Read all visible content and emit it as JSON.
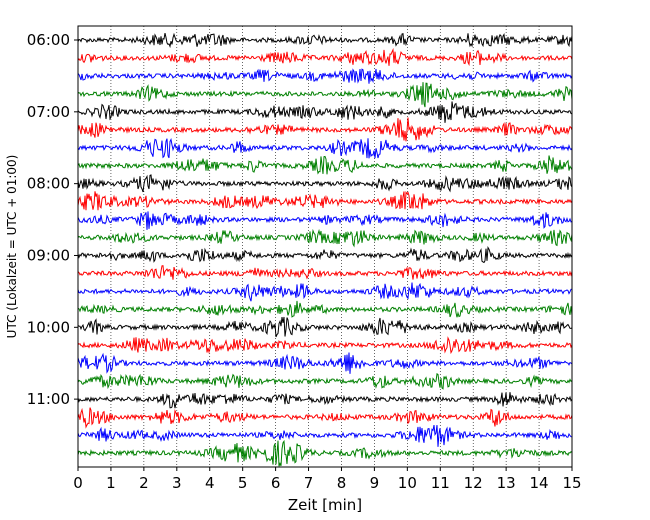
{
  "chart_data": {
    "type": "line",
    "title": "",
    "xlabel": "Zeit  [min]",
    "ylabel": "UTC (Lokalzeit = UTC + 01:00)",
    "xlim": [
      0,
      15
    ],
    "x_ticks": [
      0,
      1,
      2,
      3,
      4,
      5,
      6,
      7,
      8,
      9,
      10,
      11,
      12,
      13,
      14,
      15
    ],
    "x_grid": "dotted vertical lines at each minute",
    "y_ticks": [
      "06:00",
      "07:00",
      "08:00",
      "09:00",
      "10:00",
      "11:00"
    ],
    "trace_start": "06:00",
    "trace_end": "11:45",
    "trace_interval_min": 15,
    "trace_colors": [
      "#000000",
      "#ff0000",
      "#0000ff",
      "#008000"
    ],
    "series": [
      {
        "start": "06:00",
        "color": "#000000"
      },
      {
        "start": "06:15",
        "color": "#ff0000"
      },
      {
        "start": "06:30",
        "color": "#0000ff"
      },
      {
        "start": "06:45",
        "color": "#008000"
      },
      {
        "start": "07:00",
        "color": "#000000"
      },
      {
        "start": "07:15",
        "color": "#ff0000"
      },
      {
        "start": "07:30",
        "color": "#0000ff"
      },
      {
        "start": "07:45",
        "color": "#008000"
      },
      {
        "start": "08:00",
        "color": "#000000"
      },
      {
        "start": "08:15",
        "color": "#ff0000"
      },
      {
        "start": "08:30",
        "color": "#0000ff"
      },
      {
        "start": "08:45",
        "color": "#008000"
      },
      {
        "start": "09:00",
        "color": "#000000"
      },
      {
        "start": "09:15",
        "color": "#ff0000"
      },
      {
        "start": "09:30",
        "color": "#0000ff"
      },
      {
        "start": "09:45",
        "color": "#008000"
      },
      {
        "start": "10:00",
        "color": "#000000"
      },
      {
        "start": "10:15",
        "color": "#ff0000"
      },
      {
        "start": "10:30",
        "color": "#0000ff"
      },
      {
        "start": "10:45",
        "color": "#008000"
      },
      {
        "start": "11:00",
        "color": "#000000"
      },
      {
        "start": "11:15",
        "color": "#ff0000"
      },
      {
        "start": "11:30",
        "color": "#0000ff"
      },
      {
        "start": "11:45",
        "color": "#008000"
      }
    ]
  }
}
